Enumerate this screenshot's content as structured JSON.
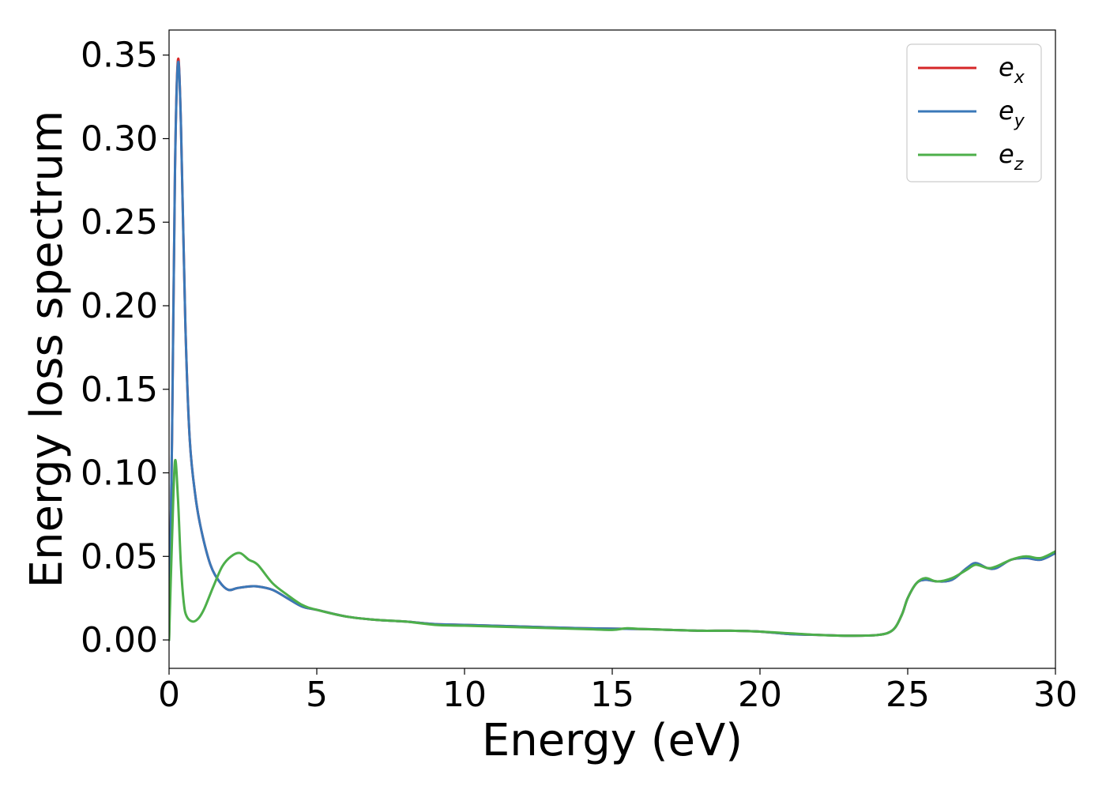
{
  "chart_data": {
    "type": "line",
    "xlabel": "Energy (eV)",
    "ylabel": "Energy loss spectrum",
    "xlim": [
      0,
      30
    ],
    "ylim": [
      -0.017,
      0.365
    ],
    "xticks": [
      0,
      5,
      10,
      15,
      20,
      25,
      30
    ],
    "yticks": [
      0.0,
      0.05,
      0.1,
      0.15,
      0.2,
      0.25,
      0.3,
      0.35
    ],
    "xtick_labels": [
      "0",
      "5",
      "10",
      "15",
      "20",
      "25",
      "30"
    ],
    "ytick_labels": [
      "0.00",
      "0.05",
      "0.10",
      "0.15",
      "0.20",
      "0.25",
      "0.30",
      "0.35"
    ],
    "grid": false,
    "legend_position": "top-right",
    "series": [
      {
        "name": "e_x",
        "label_base": "e",
        "label_sub": "x",
        "color": "#d62728",
        "x": [
          0,
          0.1,
          0.2,
          0.3,
          0.4,
          0.55,
          0.7,
          0.9,
          1.1,
          1.4,
          1.7,
          2.0,
          2.3,
          2.7,
          3.0,
          3.5,
          4.0,
          4.5,
          5.0,
          6.0,
          7.0,
          8.0,
          9.0,
          10.0,
          12.0,
          14.0,
          16.0,
          17.0,
          18.0,
          19.0,
          20.0,
          21.0,
          22.0,
          23.0,
          24.0,
          24.5,
          24.8,
          25.0,
          25.3,
          25.6,
          26.0,
          26.5,
          27.0,
          27.3,
          27.7,
          28.0,
          28.5,
          29.0,
          29.5,
          30.0
        ],
        "y": [
          0.0,
          0.12,
          0.28,
          0.347,
          0.31,
          0.19,
          0.12,
          0.085,
          0.065,
          0.045,
          0.035,
          0.03,
          0.031,
          0.032,
          0.032,
          0.03,
          0.025,
          0.02,
          0.018,
          0.014,
          0.012,
          0.011,
          0.0095,
          0.009,
          0.008,
          0.007,
          0.0065,
          0.006,
          0.0055,
          0.0055,
          0.005,
          0.0035,
          0.003,
          0.0025,
          0.003,
          0.006,
          0.015,
          0.025,
          0.034,
          0.036,
          0.035,
          0.036,
          0.043,
          0.046,
          0.043,
          0.043,
          0.048,
          0.049,
          0.048,
          0.052
        ]
      },
      {
        "name": "e_y",
        "label_base": "e",
        "label_sub": "y",
        "color": "#3a78b8",
        "x": [
          0,
          0.1,
          0.2,
          0.3,
          0.4,
          0.55,
          0.7,
          0.9,
          1.1,
          1.4,
          1.7,
          2.0,
          2.3,
          2.7,
          3.0,
          3.5,
          4.0,
          4.5,
          5.0,
          6.0,
          7.0,
          8.0,
          9.0,
          10.0,
          12.0,
          14.0,
          16.0,
          17.0,
          18.0,
          19.0,
          20.0,
          21.0,
          22.0,
          23.0,
          24.0,
          24.5,
          24.8,
          25.0,
          25.3,
          25.6,
          26.0,
          26.5,
          27.0,
          27.3,
          27.7,
          28.0,
          28.5,
          29.0,
          29.5,
          30.0
        ],
        "y": [
          0.0,
          0.12,
          0.28,
          0.345,
          0.31,
          0.19,
          0.12,
          0.085,
          0.065,
          0.045,
          0.035,
          0.03,
          0.031,
          0.032,
          0.032,
          0.03,
          0.025,
          0.02,
          0.018,
          0.014,
          0.012,
          0.011,
          0.0095,
          0.009,
          0.008,
          0.007,
          0.0065,
          0.006,
          0.0055,
          0.0055,
          0.005,
          0.0035,
          0.003,
          0.0025,
          0.003,
          0.006,
          0.015,
          0.025,
          0.034,
          0.036,
          0.035,
          0.036,
          0.043,
          0.046,
          0.043,
          0.043,
          0.048,
          0.049,
          0.048,
          0.052
        ]
      },
      {
        "name": "e_z",
        "label_base": "e",
        "label_sub": "z",
        "color": "#4daf4a",
        "x": [
          0,
          0.1,
          0.2,
          0.3,
          0.4,
          0.5,
          0.6,
          0.8,
          1.0,
          1.2,
          1.5,
          1.8,
          2.1,
          2.4,
          2.7,
          3.0,
          3.5,
          4.0,
          4.5,
          5.0,
          6.0,
          7.0,
          8.0,
          9.0,
          10.0,
          12.0,
          14.0,
          15.0,
          15.5,
          16.0,
          17.0,
          18.0,
          19.0,
          20.0,
          21.0,
          22.0,
          23.0,
          24.0,
          24.5,
          24.8,
          25.0,
          25.3,
          25.6,
          26.0,
          26.5,
          27.0,
          27.3,
          27.7,
          28.0,
          28.5,
          29.0,
          29.5,
          30.0
        ],
        "y": [
          0.0,
          0.06,
          0.107,
          0.085,
          0.045,
          0.022,
          0.014,
          0.011,
          0.013,
          0.019,
          0.032,
          0.044,
          0.05,
          0.052,
          0.048,
          0.045,
          0.034,
          0.027,
          0.021,
          0.018,
          0.014,
          0.012,
          0.011,
          0.009,
          0.0085,
          0.0075,
          0.0065,
          0.006,
          0.007,
          0.0065,
          0.006,
          0.0055,
          0.0055,
          0.005,
          0.004,
          0.003,
          0.0025,
          0.003,
          0.006,
          0.015,
          0.025,
          0.034,
          0.037,
          0.035,
          0.037,
          0.042,
          0.045,
          0.043,
          0.044,
          0.048,
          0.05,
          0.049,
          0.053
        ]
      }
    ]
  }
}
